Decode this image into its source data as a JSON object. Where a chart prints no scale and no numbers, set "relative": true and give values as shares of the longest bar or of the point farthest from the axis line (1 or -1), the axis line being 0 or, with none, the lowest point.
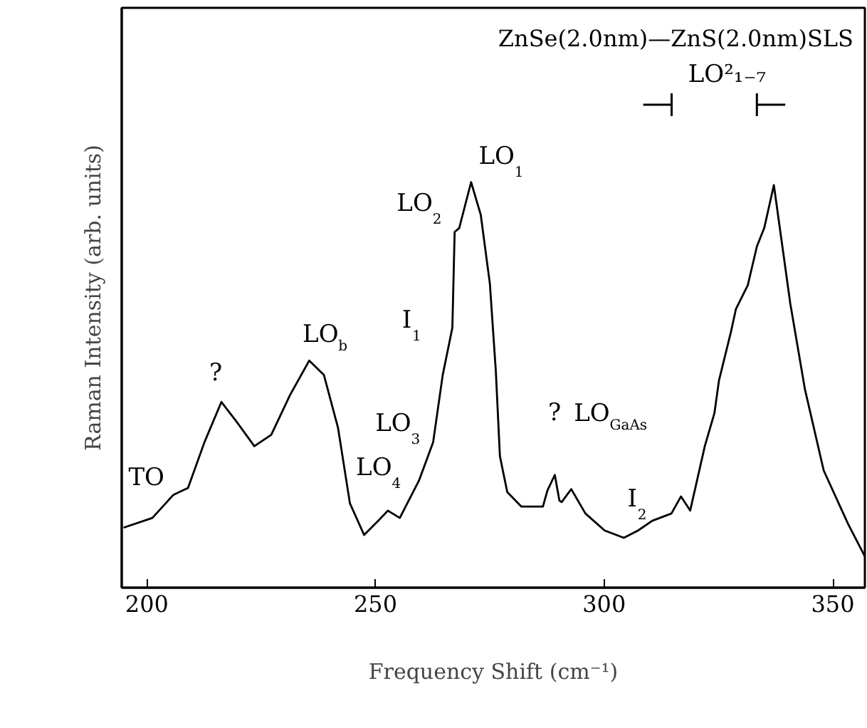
{
  "chart_data": {
    "type": "line",
    "relative": true,
    "title": "ZnSe(2.0nm)—ZnS(2.0nm)SLS",
    "xlabel": "Frequency Shift (cm⁻¹)",
    "ylabel": "Raman Intensity (arb. units)",
    "xlim": [
      194.5,
      357
    ],
    "xticks": [
      200,
      250,
      300,
      350
    ],
    "grid": false,
    "marker": "none",
    "line_style": "solid",
    "series": [
      {
        "color": "#000000",
        "x": [
          194.9,
          201.2,
          205.8,
          209,
          212.6,
          216.3,
          219.9,
          223.5,
          227.2,
          231.3,
          235.5,
          238.7,
          241.8,
          244.4,
          247.5,
          250.6,
          252.7,
          255.3,
          259.5,
          262.6,
          264.7,
          266.8,
          267.3,
          268.3,
          270.9,
          273,
          275,
          276.3,
          277.2,
          278.8,
          281.9,
          286.6,
          287.6,
          289.2,
          290.2,
          290.7,
          292.8,
          295.9,
          300.1,
          304.3,
          307.4,
          310.5,
          314.7,
          316.8,
          318.8,
          322,
          324.1,
          325.1,
          327.7,
          328.8,
          331.4,
          333.4,
          335,
          337.1,
          338.7,
          340.7,
          343.9,
          348,
          353.3,
          357
        ],
        "values": [
          0.148,
          0.172,
          0.229,
          0.246,
          0.359,
          0.458,
          0.405,
          0.349,
          0.377,
          0.475,
          0.56,
          0.525,
          0.394,
          0.208,
          0.13,
          0.165,
          0.19,
          0.172,
          0.264,
          0.359,
          0.525,
          0.641,
          0.877,
          0.887,
          1.0,
          0.92,
          0.75,
          0.535,
          0.324,
          0.236,
          0.2,
          0.2,
          0.24,
          0.278,
          0.215,
          0.211,
          0.243,
          0.183,
          0.141,
          0.123,
          0.141,
          0.165,
          0.183,
          0.225,
          0.19,
          0.349,
          0.43,
          0.511,
          0.63,
          0.687,
          0.746,
          0.842,
          0.887,
          0.993,
          0.863,
          0.7,
          0.489,
          0.289,
          0.158,
          0.077
        ]
      }
    ],
    "annotations": [
      {
        "text": "TO",
        "x": 205.8,
        "y": 0.229
      },
      {
        "text": "?",
        "x": 216.3,
        "y": 0.458
      },
      {
        "text": "LO$_{b}$",
        "x": 235.5,
        "y": 0.56
      },
      {
        "text": "LO$_{4}$",
        "x": 250.6,
        "y": 0.165
      },
      {
        "text": "LO$_{3}$",
        "x": 259.5,
        "y": 0.264
      },
      {
        "text": "I$_{1}$",
        "x": 264.7,
        "y": 0.525
      },
      {
        "text": "LO$_{2}$",
        "x": 267.3,
        "y": 0.877
      },
      {
        "text": "LO$_{1}$",
        "x": 270.9,
        "y": 1.0
      },
      {
        "text": "?",
        "x": 287.6,
        "y": 0.24
      },
      {
        "text": "LO$_{GaAs}$",
        "x": 292.8,
        "y": 0.243
      },
      {
        "text": "I$_{2}$",
        "x": 316.8,
        "y": 0.225
      },
      "LO²₁₋₇"
    ]
  }
}
